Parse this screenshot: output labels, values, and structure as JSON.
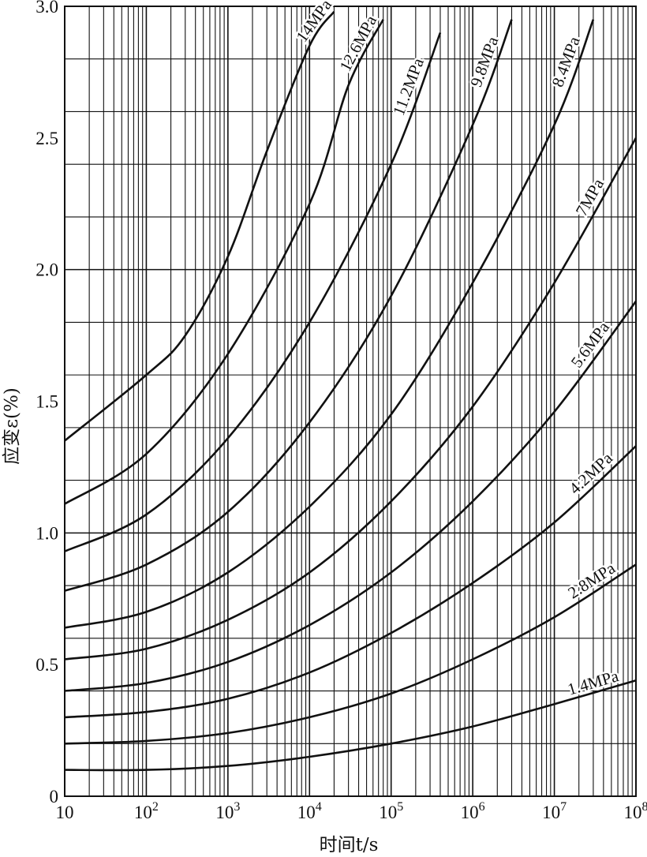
{
  "chart_data": {
    "type": "line",
    "title": "",
    "xlabel": "时间t/s",
    "ylabel": "应变ε(%)",
    "xscale": "log",
    "xlim": [
      10,
      100000000
    ],
    "ylim": [
      0,
      3.0
    ],
    "grid": true,
    "legend": "inline-curve-labels",
    "x_ticks": [
      {
        "base": "10",
        "exp": ""
      },
      {
        "base": "10",
        "exp": "2"
      },
      {
        "base": "10",
        "exp": "3"
      },
      {
        "base": "10",
        "exp": "4"
      },
      {
        "base": "10",
        "exp": "5"
      },
      {
        "base": "10",
        "exp": "6"
      },
      {
        "base": "10",
        "exp": "7"
      },
      {
        "base": "10",
        "exp": "8"
      }
    ],
    "y_ticks": [
      "0",
      "0.5",
      "1.0",
      "1.5",
      "2.0",
      "2.5",
      "3.0"
    ],
    "series": [
      {
        "name": "1.4MPa",
        "x": [
          10,
          100,
          1000,
          10000,
          100000,
          1000000,
          10000000,
          100000000
        ],
        "values": [
          0.1,
          0.1,
          0.115,
          0.15,
          0.2,
          0.265,
          0.35,
          0.44
        ]
      },
      {
        "name": "2.8MPa",
        "x": [
          10,
          100,
          1000,
          10000,
          100000,
          1000000,
          10000000,
          100000000
        ],
        "values": [
          0.2,
          0.21,
          0.24,
          0.3,
          0.39,
          0.52,
          0.68,
          0.88
        ]
      },
      {
        "name": "4.2MPa",
        "x": [
          10,
          100,
          1000,
          10000,
          100000,
          1000000,
          10000000,
          100000000
        ],
        "values": [
          0.3,
          0.32,
          0.37,
          0.47,
          0.62,
          0.81,
          1.04,
          1.33
        ]
      },
      {
        "name": "5.6MPa",
        "x": [
          10,
          100,
          1000,
          10000,
          100000,
          1000000,
          10000000,
          100000000
        ],
        "values": [
          0.4,
          0.43,
          0.51,
          0.65,
          0.85,
          1.12,
          1.46,
          1.88
        ]
      },
      {
        "name": "7MPa",
        "x": [
          10,
          100,
          1000,
          10000,
          100000,
          1000000,
          10000000,
          100000000
        ],
        "values": [
          0.52,
          0.56,
          0.67,
          0.85,
          1.12,
          1.48,
          1.95,
          2.5
        ]
      },
      {
        "name": "8.4MPa",
        "x": [
          10,
          100,
          1000,
          10000,
          100000,
          1000000,
          10000000,
          30000000
        ],
        "values": [
          0.64,
          0.7,
          0.85,
          1.1,
          1.45,
          1.95,
          2.55,
          2.95
        ]
      },
      {
        "name": "9.8MPa",
        "x": [
          10,
          100,
          1000,
          10000,
          100000,
          1000000,
          3000000
        ],
        "values": [
          0.78,
          0.88,
          1.08,
          1.42,
          1.9,
          2.55,
          2.95
        ]
      },
      {
        "name": "11.2MPa",
        "x": [
          10,
          100,
          1000,
          10000,
          100000,
          400000
        ],
        "values": [
          0.93,
          1.07,
          1.36,
          1.8,
          2.4,
          2.9
        ]
      },
      {
        "name": "12.6MPa",
        "x": [
          10,
          100,
          1000,
          10000,
          30000,
          80000
        ],
        "values": [
          1.11,
          1.3,
          1.68,
          2.25,
          2.7,
          2.95
        ]
      },
      {
        "name": "14MPa",
        "x": [
          10,
          100,
          300,
          1000,
          3000,
          10000,
          20000
        ],
        "values": [
          1.35,
          1.6,
          1.75,
          2.05,
          2.45,
          2.85,
          2.98
        ]
      }
    ]
  }
}
